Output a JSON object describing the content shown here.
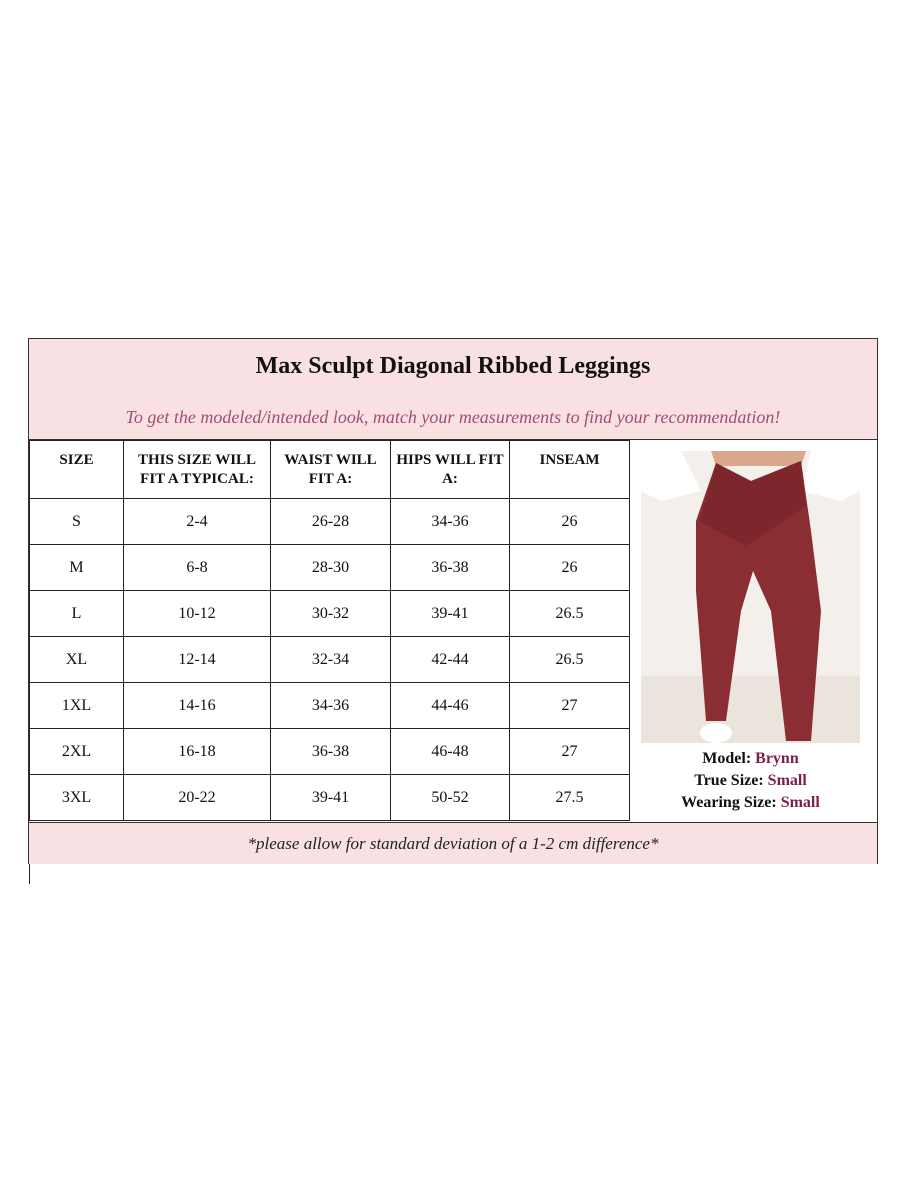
{
  "header": {
    "title": "Max Sculpt Diagonal Ribbed Leggings",
    "subtitle": "To get the modeled/intended look, match your measurements to find your recommendation!"
  },
  "table": {
    "columns": [
      "SIZE",
      "THIS SIZE WILL FIT A TYPICAL:",
      "WAIST WILL FIT A:",
      "HIPS WILL FIT A:",
      "INSEAM"
    ],
    "rows": [
      [
        "S",
        "2-4",
        "26-28",
        "34-36",
        "26"
      ],
      [
        "M",
        "6-8",
        "28-30",
        "36-38",
        "26"
      ],
      [
        "L",
        "10-12",
        "30-32",
        "39-41",
        "26.5"
      ],
      [
        "XL",
        "12-14",
        "32-34",
        "42-44",
        "26.5"
      ],
      [
        "1XL",
        "14-16",
        "34-36",
        "44-46",
        "27"
      ],
      [
        "2XL",
        "16-18",
        "36-38",
        "46-48",
        "27"
      ],
      [
        "3XL",
        "20-22",
        "39-41",
        "50-52",
        "27.5"
      ]
    ]
  },
  "model": {
    "model_label": "Model:",
    "model_name": "Brynn",
    "true_size_label": "True Size:",
    "true_size": "Small",
    "wearing_size_label": "Wearing Size:",
    "wearing_size": "Small"
  },
  "footer": {
    "note": "*please allow for standard deviation of a 1-2 cm difference*"
  },
  "colors": {
    "header_bg": "#f9e1e3",
    "accent": "#7b1f4a",
    "subtitle": "#a14d76",
    "leggings": "#8a2e34"
  }
}
